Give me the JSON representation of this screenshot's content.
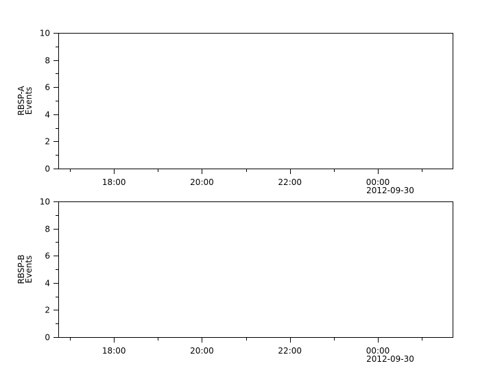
{
  "chart_data": [
    {
      "type": "line",
      "ylabel": [
        "RBSP-A",
        "Events"
      ],
      "ylim": [
        0,
        10
      ],
      "yticks": [
        0,
        2,
        4,
        6,
        8,
        10
      ],
      "xlim": [
        "2012-09-29T16:44",
        "2012-09-30T01:42"
      ],
      "xticks": [
        {
          "time": "2012-09-29T18:00",
          "label": "18:00",
          "sublabel": ""
        },
        {
          "time": "2012-09-29T20:00",
          "label": "20:00",
          "sublabel": ""
        },
        {
          "time": "2012-09-29T22:00",
          "label": "22:00",
          "sublabel": ""
        },
        {
          "time": "2012-09-30T00:00",
          "label": "00:00",
          "sublabel": "2012-09-30"
        }
      ],
      "series": []
    },
    {
      "type": "line",
      "ylabel": [
        "RBSP-B",
        "Events"
      ],
      "ylim": [
        0,
        10
      ],
      "yticks": [
        0,
        2,
        4,
        6,
        8,
        10
      ],
      "xlim": [
        "2012-09-29T16:44",
        "2012-09-30T01:42"
      ],
      "xticks": [
        {
          "time": "2012-09-29T18:00",
          "label": "18:00",
          "sublabel": ""
        },
        {
          "time": "2012-09-29T20:00",
          "label": "20:00",
          "sublabel": ""
        },
        {
          "time": "2012-09-29T22:00",
          "label": "22:00",
          "sublabel": ""
        },
        {
          "time": "2012-09-30T00:00",
          "label": "00:00",
          "sublabel": "2012-09-30"
        }
      ],
      "series": []
    }
  ]
}
